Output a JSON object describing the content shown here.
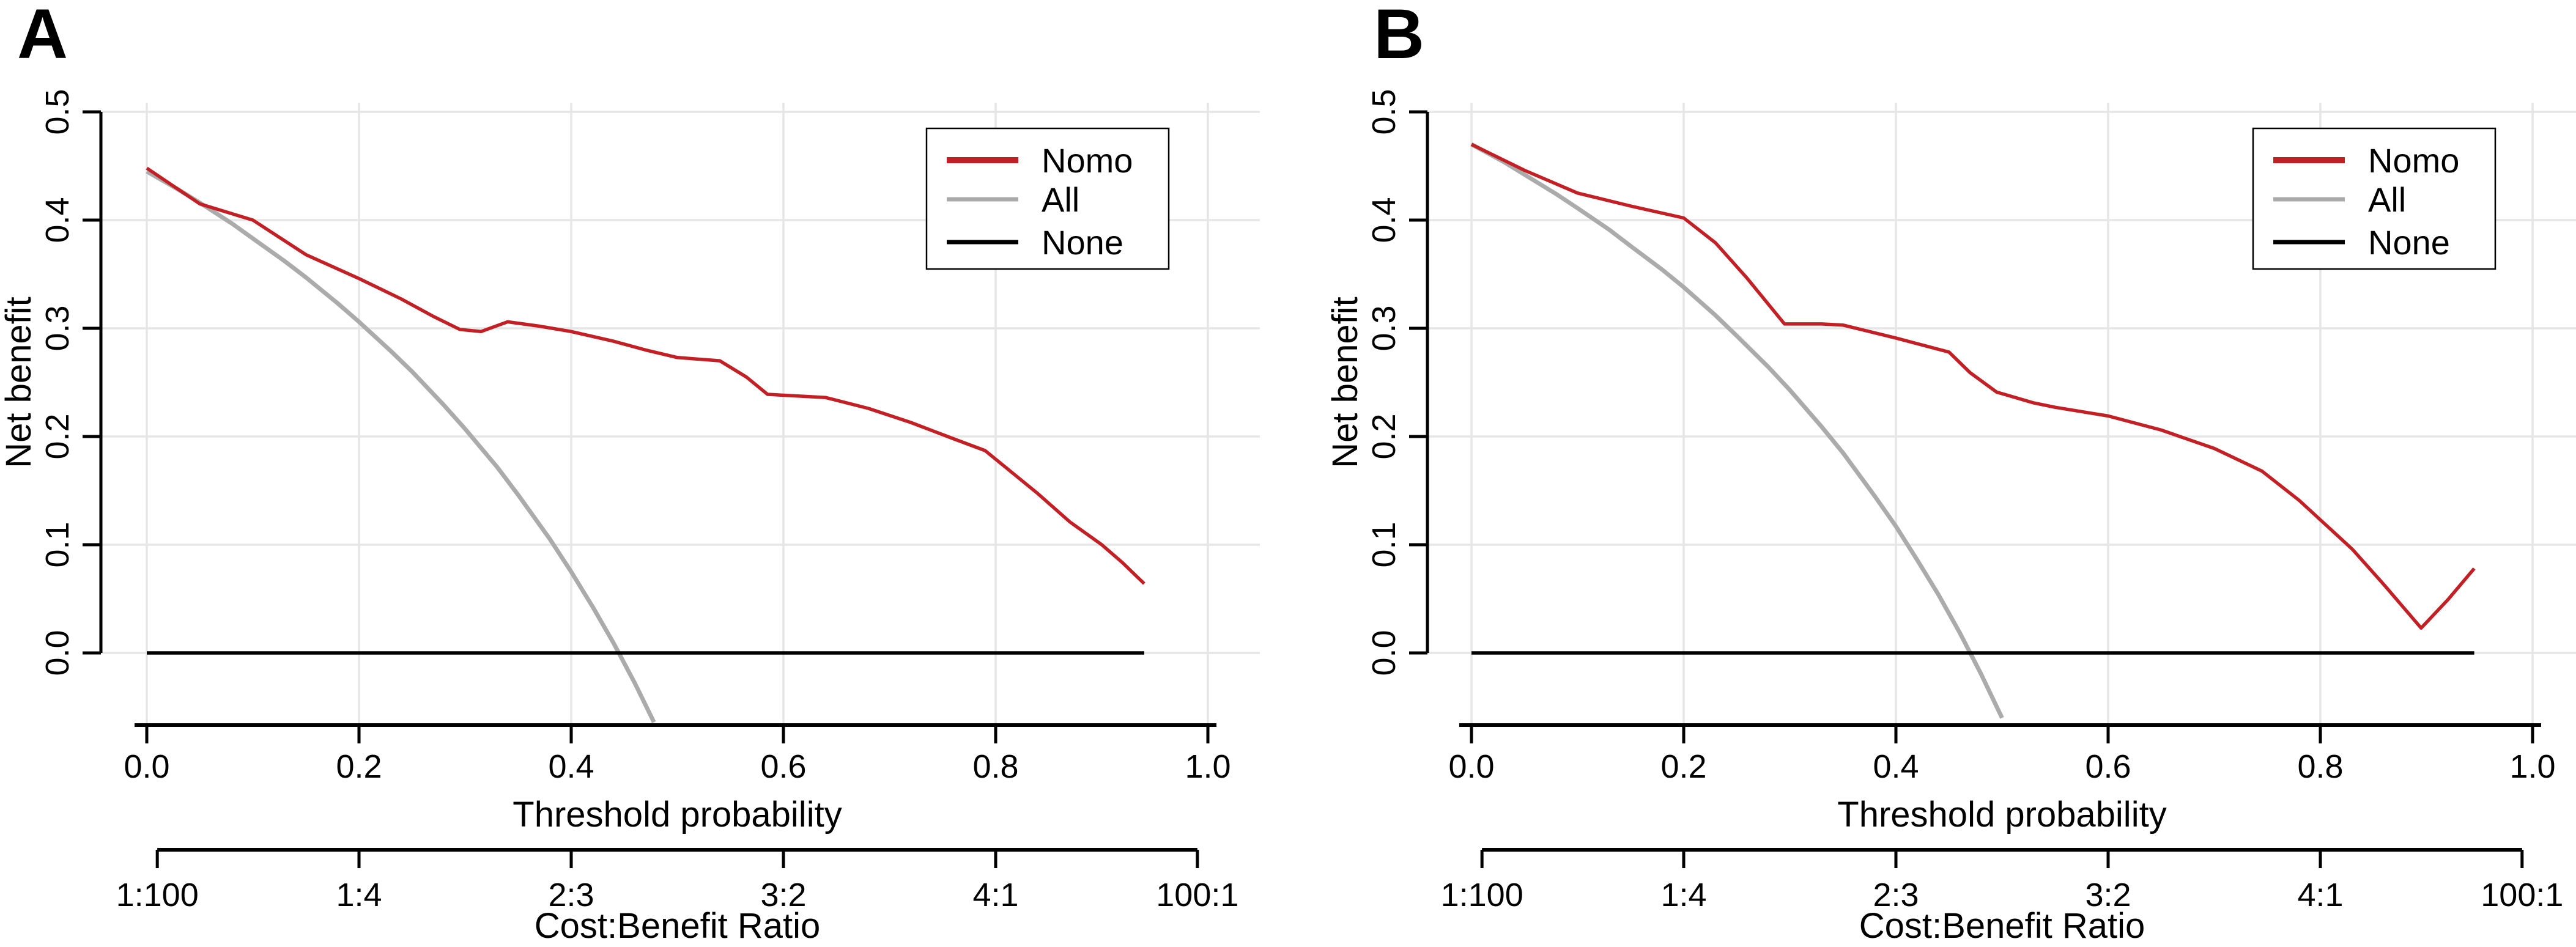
{
  "figure": {
    "background": "#FFFFFF",
    "panel_count": 2,
    "description": "Decision curve analysis, two panels"
  },
  "chart_data": [
    {
      "type": "line",
      "panel_label": "A",
      "xlabel": "Threshold probability",
      "ylabel": "Net benefit",
      "x2label": "Cost:Benefit Ratio",
      "xlim": [
        0,
        1
      ],
      "ylim": [
        -0.066,
        0.5
      ],
      "grid": true,
      "x_ticks": [
        0,
        0.2,
        0.4,
        0.6,
        0.8,
        1
      ],
      "x_tick_labels": [
        "0.0",
        "0.2",
        "0.4",
        "0.6",
        "0.8",
        "1.0"
      ],
      "y_ticks": [
        0,
        0.1,
        0.2,
        0.3,
        0.4,
        0.5
      ],
      "y_tick_labels": [
        "0.0",
        "0.1",
        "0.2",
        "0.3",
        "0.4",
        "0.5"
      ],
      "x2_ticks": [
        0.0099,
        0.2,
        0.4,
        0.6,
        0.8,
        0.9901
      ],
      "x2_tick_labels": [
        "1:100",
        "1:4",
        "2:3",
        "3:2",
        "4:1",
        "100:1"
      ],
      "colors": {
        "grid": "#E6E6E6",
        "axis": "#000000"
      },
      "legend": {
        "position": "top-right",
        "entries": [
          {
            "label": "Nomo",
            "color": "#C32026"
          },
          {
            "label": "All",
            "color": "#ABABAB"
          },
          {
            "label": "None",
            "color": "#000000"
          }
        ]
      },
      "series": [
        {
          "name": "All",
          "color": "#ABABAB",
          "width": 7,
          "points": [
            [
              0,
              0.445
            ],
            [
              0.03,
              0.428
            ],
            [
              0.05,
              0.416
            ],
            [
              0.08,
              0.397
            ],
            [
              0.1,
              0.383
            ],
            [
              0.13,
              0.362
            ],
            [
              0.15,
              0.347
            ],
            [
              0.18,
              0.323
            ],
            [
              0.2,
              0.306
            ],
            [
              0.23,
              0.279
            ],
            [
              0.25,
              0.26
            ],
            [
              0.28,
              0.229
            ],
            [
              0.3,
              0.207
            ],
            [
              0.33,
              0.172
            ],
            [
              0.35,
              0.146
            ],
            [
              0.38,
              0.105
            ],
            [
              0.4,
              0.075
            ],
            [
              0.42,
              0.043
            ],
            [
              0.44,
              0.009
            ],
            [
              0.46,
              -0.028
            ],
            [
              0.478,
              -0.064
            ]
          ]
        },
        {
          "name": "None",
          "color": "#000000",
          "width": 5.5,
          "points": [
            [
              0,
              0
            ],
            [
              0.94,
              0
            ]
          ]
        },
        {
          "name": "Nomo",
          "color": "#C32026",
          "width": 5.5,
          "points": [
            [
              0,
              0.448
            ],
            [
              0.05,
              0.415
            ],
            [
              0.1,
              0.4
            ],
            [
              0.15,
              0.368
            ],
            [
              0.2,
              0.346
            ],
            [
              0.24,
              0.327
            ],
            [
              0.27,
              0.311
            ],
            [
              0.295,
              0.299
            ],
            [
              0.315,
              0.297
            ],
            [
              0.34,
              0.306
            ],
            [
              0.37,
              0.302
            ],
            [
              0.4,
              0.297
            ],
            [
              0.44,
              0.288
            ],
            [
              0.47,
              0.28
            ],
            [
              0.5,
              0.273
            ],
            [
              0.54,
              0.27
            ],
            [
              0.565,
              0.255
            ],
            [
              0.585,
              0.239
            ],
            [
              0.64,
              0.236
            ],
            [
              0.68,
              0.226
            ],
            [
              0.72,
              0.213
            ],
            [
              0.76,
              0.198
            ],
            [
              0.79,
              0.187
            ],
            [
              0.81,
              0.171
            ],
            [
              0.84,
              0.147
            ],
            [
              0.87,
              0.121
            ],
            [
              0.9,
              0.1
            ],
            [
              0.92,
              0.083
            ],
            [
              0.94,
              0.064
            ]
          ]
        }
      ]
    },
    {
      "type": "line",
      "panel_label": "B",
      "xlabel": "Threshold probability",
      "ylabel": "Net benefit",
      "x2label": "Cost:Benefit Ratio",
      "xlim": [
        0,
        1
      ],
      "ylim": [
        -0.066,
        0.5
      ],
      "grid": true,
      "x_ticks": [
        0,
        0.2,
        0.4,
        0.6,
        0.8,
        1
      ],
      "x_tick_labels": [
        "0.0",
        "0.2",
        "0.4",
        "0.6",
        "0.8",
        "1.0"
      ],
      "y_ticks": [
        0,
        0.1,
        0.2,
        0.3,
        0.4,
        0.5
      ],
      "y_tick_labels": [
        "0.0",
        "0.1",
        "0.2",
        "0.3",
        "0.4",
        "0.5"
      ],
      "x2_ticks": [
        0.0099,
        0.2,
        0.4,
        0.6,
        0.8,
        0.9901
      ],
      "x2_tick_labels": [
        "1:100",
        "1:4",
        "2:3",
        "3:2",
        "4:1",
        "100:1"
      ],
      "colors": {
        "grid": "#E6E6E6",
        "axis": "#000000"
      },
      "legend": {
        "position": "top-right",
        "entries": [
          {
            "label": "Nomo",
            "color": "#C32026"
          },
          {
            "label": "All",
            "color": "#ABABAB"
          },
          {
            "label": "None",
            "color": "#000000"
          }
        ]
      },
      "series": [
        {
          "name": "All",
          "color": "#ABABAB",
          "width": 7,
          "points": [
            [
              0,
              0.47
            ],
            [
              0.03,
              0.454
            ],
            [
              0.05,
              0.442
            ],
            [
              0.08,
              0.424
            ],
            [
              0.1,
              0.411
            ],
            [
              0.13,
              0.391
            ],
            [
              0.15,
              0.376
            ],
            [
              0.18,
              0.354
            ],
            [
              0.2,
              0.338
            ],
            [
              0.23,
              0.312
            ],
            [
              0.25,
              0.293
            ],
            [
              0.28,
              0.264
            ],
            [
              0.3,
              0.243
            ],
            [
              0.33,
              0.209
            ],
            [
              0.35,
              0.185
            ],
            [
              0.38,
              0.145
            ],
            [
              0.4,
              0.117
            ],
            [
              0.42,
              0.086
            ],
            [
              0.44,
              0.054
            ],
            [
              0.46,
              0.019
            ],
            [
              0.48,
              -0.019
            ],
            [
              0.5,
              -0.06
            ]
          ]
        },
        {
          "name": "None",
          "color": "#000000",
          "width": 5.5,
          "points": [
            [
              0,
              0
            ],
            [
              0.945,
              0
            ]
          ]
        },
        {
          "name": "Nomo",
          "color": "#C32026",
          "width": 5.5,
          "points": [
            [
              0,
              0.47
            ],
            [
              0.05,
              0.446
            ],
            [
              0.1,
              0.425
            ],
            [
              0.15,
              0.413
            ],
            [
              0.2,
              0.402
            ],
            [
              0.23,
              0.379
            ],
            [
              0.26,
              0.346
            ],
            [
              0.295,
              0.304
            ],
            [
              0.33,
              0.304
            ],
            [
              0.35,
              0.303
            ],
            [
              0.4,
              0.291
            ],
            [
              0.45,
              0.278
            ],
            [
              0.47,
              0.259
            ],
            [
              0.495,
              0.241
            ],
            [
              0.53,
              0.231
            ],
            [
              0.55,
              0.227
            ],
            [
              0.6,
              0.219
            ],
            [
              0.65,
              0.206
            ],
            [
              0.7,
              0.189
            ],
            [
              0.745,
              0.168
            ],
            [
              0.78,
              0.141
            ],
            [
              0.83,
              0.096
            ],
            [
              0.86,
              0.063
            ],
            [
              0.895,
              0.023
            ],
            [
              0.92,
              0.049
            ],
            [
              0.945,
              0.078
            ]
          ]
        }
      ]
    }
  ]
}
